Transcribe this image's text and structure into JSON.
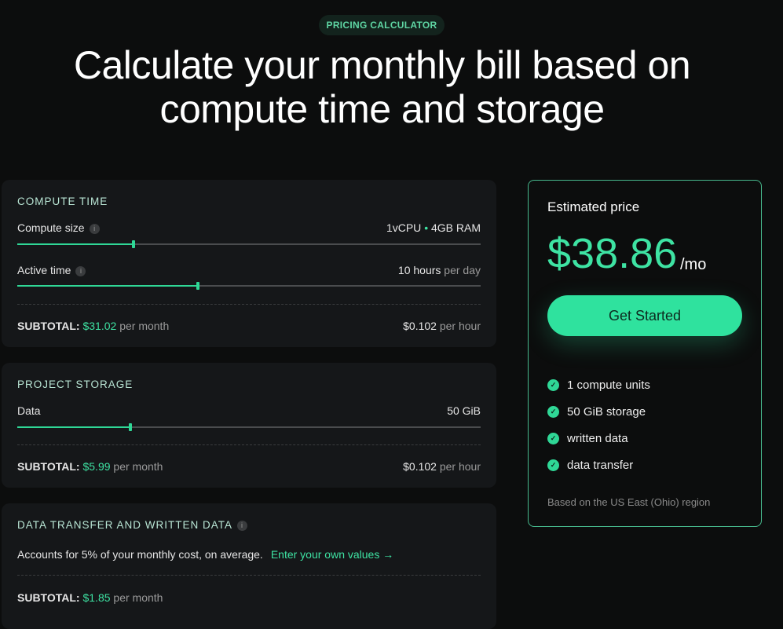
{
  "badge": "PRICING CALCULATOR",
  "title_line1": "Calculate your monthly bill based on",
  "title_line2": "compute time and storage",
  "compute": {
    "title": "COMPUTE TIME",
    "size_label": "Compute size",
    "size_cpu": "1vCPU",
    "size_sep": "•",
    "size_ram": "4GB RAM",
    "size_fraction": 0.25,
    "active_label": "Active time",
    "active_value": "10 hours",
    "active_unit": "per day",
    "active_fraction": 0.39,
    "subtotal_label": "SUBTOTAL:",
    "subtotal": "$31.02",
    "subtotal_unit": "per month",
    "rate": "$0.102",
    "rate_unit": "per hour"
  },
  "storage": {
    "title": "PROJECT STORAGE",
    "data_label": "Data",
    "data_value": "50 GiB",
    "data_fraction": 0.244,
    "subtotal_label": "SUBTOTAL:",
    "subtotal": "$5.99",
    "subtotal_unit": "per month",
    "rate": "$0.102",
    "rate_unit": "per hour"
  },
  "transfer": {
    "title": "DATA TRANSFER AND WRITTEN DATA",
    "desc": "Accounts for 5% of your monthly cost, on average.",
    "link": "Enter your own values →",
    "subtotal_label": "SUBTOTAL:",
    "subtotal": "$1.85",
    "subtotal_unit": "per month"
  },
  "info_glyph": "i",
  "price": {
    "label": "Estimated price",
    "amount": "$38.86",
    "unit": "/mo",
    "cta": "Get Started",
    "features": [
      "1 compute units",
      "50 GiB storage",
      "written data",
      "data transfer"
    ],
    "check_glyph": "✓",
    "region": "Based on the US East (Ohio) region"
  },
  "colors": {
    "accent": "#2fe29e",
    "background": "#0c0d0d",
    "card": "#151719"
  }
}
